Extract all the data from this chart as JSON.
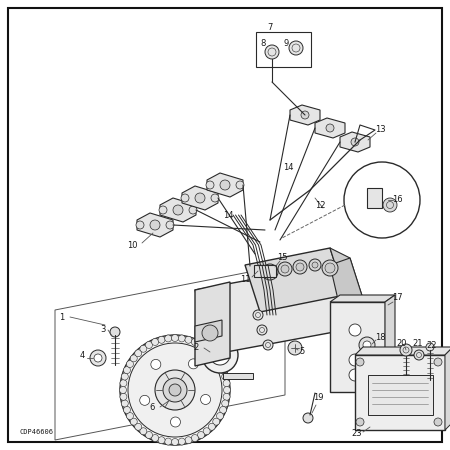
{
  "bg_color": "#ffffff",
  "line_color": "#2a2a2a",
  "text_color": "#1a1a1a",
  "diagram_code": "CDP46606",
  "fs_label": 6.0,
  "border_lw": 1.2
}
